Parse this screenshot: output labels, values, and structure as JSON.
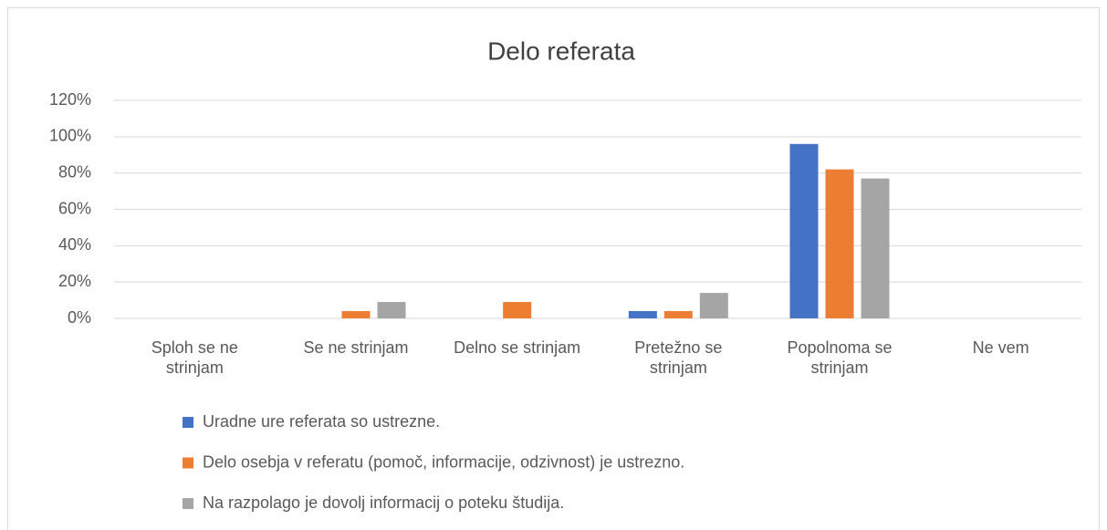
{
  "chart_data": {
    "type": "bar",
    "title": "Delo referata",
    "categories": [
      "Sploh se ne strinjam",
      "Se ne strinjam",
      "Delno se strinjam",
      "Pretežno se strinjam",
      "Popolnoma se strinjam",
      "Ne vem"
    ],
    "series": [
      {
        "name": "Uradne ure referata so ustrezne.",
        "color": "#4472c4",
        "values": [
          0,
          0,
          0,
          4,
          96,
          0
        ]
      },
      {
        "name": "Delo osebja v referatu (pomoč, informacije, odzivnost) je ustrezno.",
        "color": "#ed7d31",
        "values": [
          0,
          4,
          9,
          4,
          82,
          0
        ]
      },
      {
        "name": "Na razpolago je dovolj informacij o poteku študija.",
        "color": "#a5a5a5",
        "values": [
          0,
          9,
          0,
          14,
          77,
          0
        ]
      }
    ],
    "ylim": [
      0,
      120
    ],
    "yticks": [
      {
        "value": 0,
        "label": "0%"
      },
      {
        "value": 20,
        "label": "20%"
      },
      {
        "value": 40,
        "label": "40%"
      },
      {
        "value": 60,
        "label": "60%"
      },
      {
        "value": 80,
        "label": "80%"
      },
      {
        "value": 100,
        "label": "100%"
      },
      {
        "value": 120,
        "label": "120%"
      }
    ],
    "grid": true,
    "legend": "bottom"
  }
}
